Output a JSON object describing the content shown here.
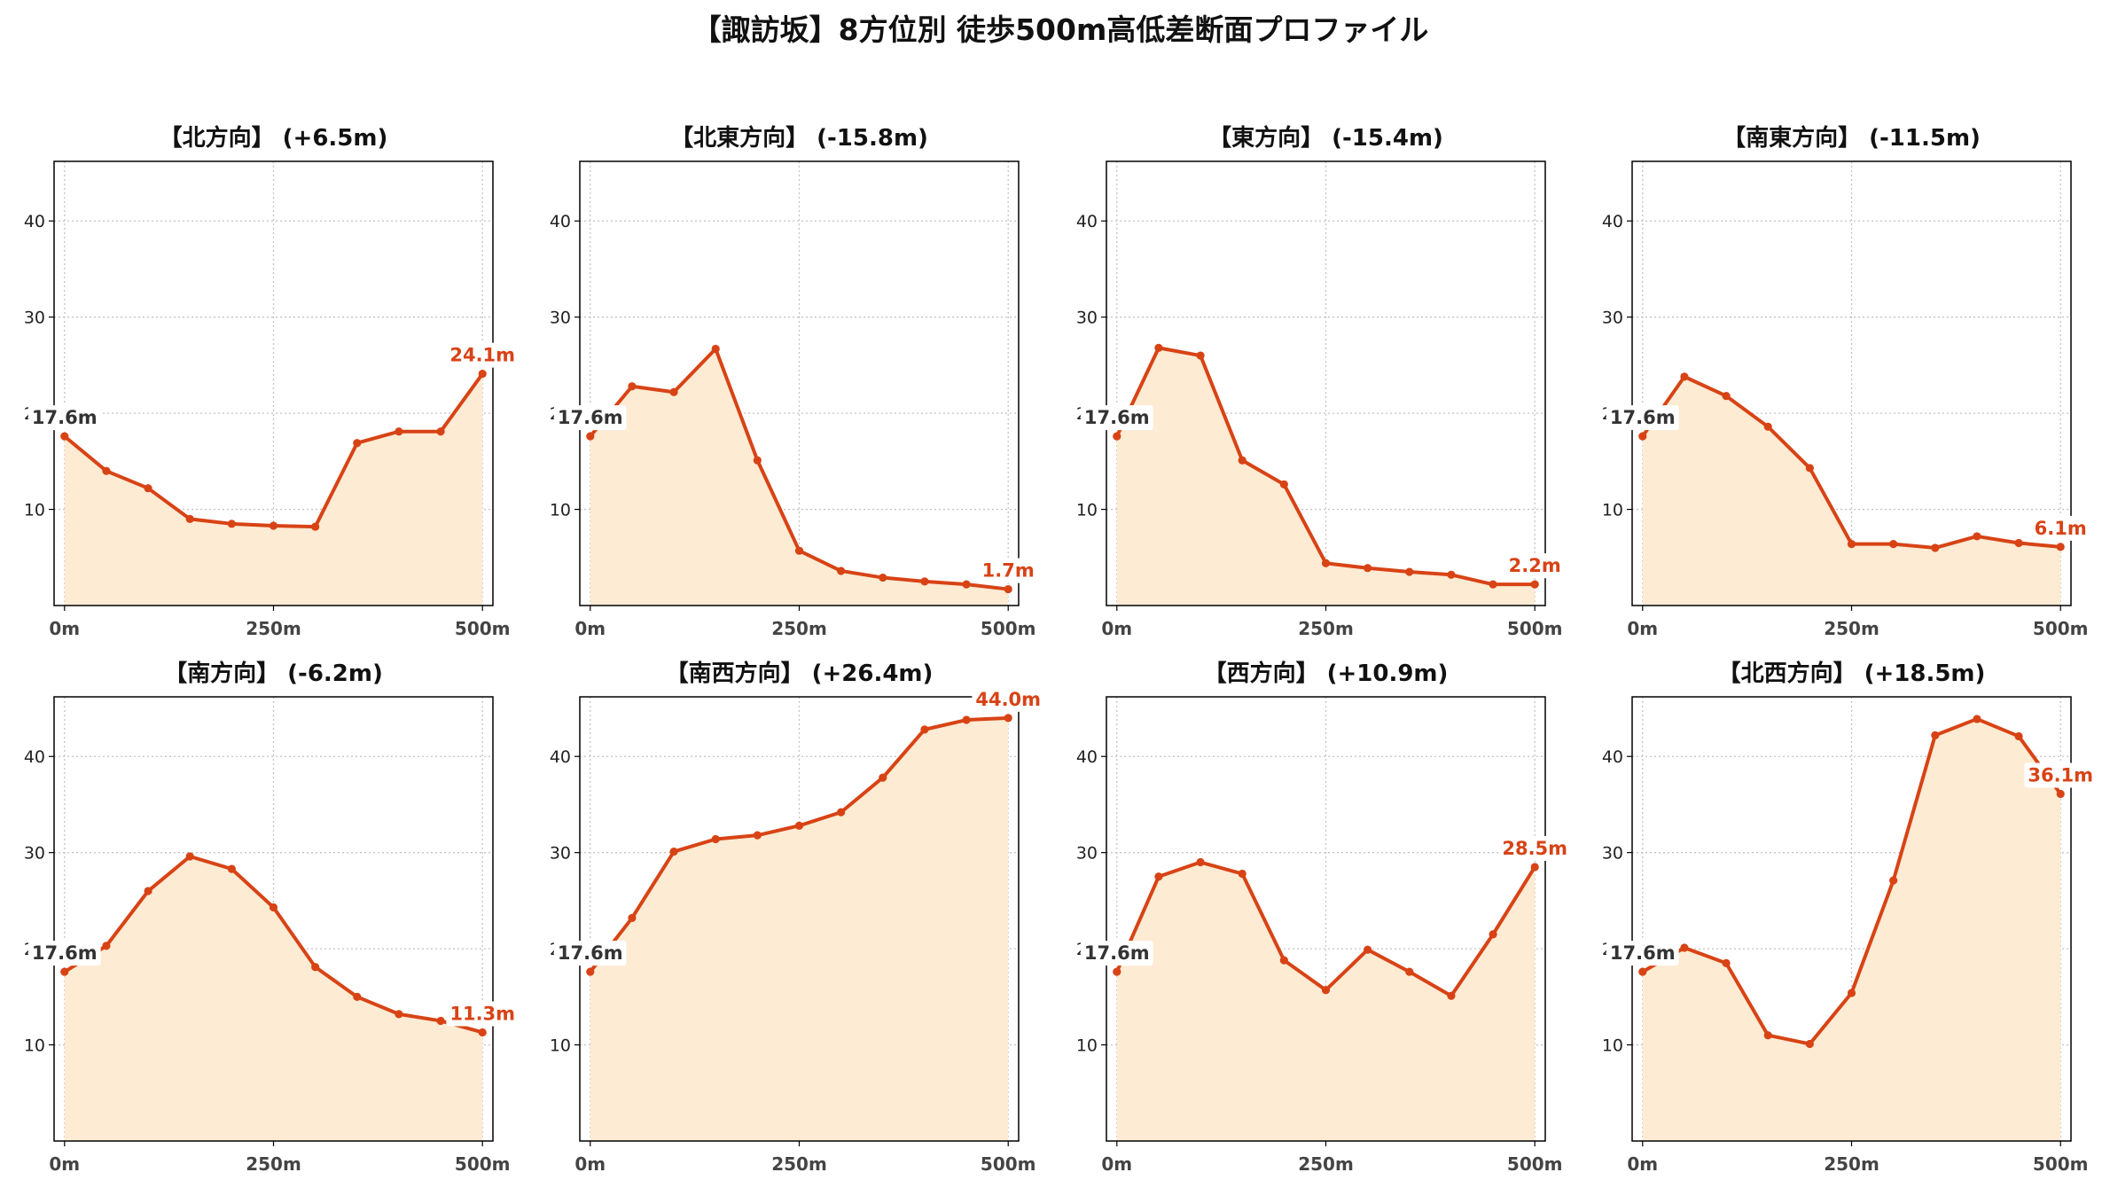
{
  "title": "【諏訪坂】8方位別 徒歩500m高低差断面プロファイル",
  "colors": {
    "line": "#d84315",
    "fill": "#fdebd3",
    "start_label": "#333333",
    "grid": "#c4c4c4",
    "frame": "#000000",
    "label_box": "#ffffff"
  },
  "chart_data": [
    {
      "type": "area",
      "title": "【北方向】 (+6.5m)",
      "x": [
        0,
        50,
        100,
        150,
        200,
        250,
        300,
        350,
        400,
        450,
        500
      ],
      "values": [
        17.6,
        14.0,
        12.2,
        9.0,
        8.5,
        8.3,
        8.2,
        16.9,
        18.1,
        18.1,
        24.1
      ],
      "xlim": [
        -12.5,
        512.5
      ],
      "ylim": [
        0,
        46.2
      ],
      "xticks": [
        0,
        250,
        500
      ],
      "xtick_labels": [
        "0m",
        "250m",
        "500m"
      ],
      "yticks": [
        10,
        20,
        30,
        40
      ],
      "ytick_labels": [
        "10",
        "20",
        "30",
        "40"
      ],
      "start_label": "17.6m",
      "end_label": "24.1m",
      "grid": true
    },
    {
      "type": "area",
      "title": "【北東方向】 (-15.8m)",
      "x": [
        0,
        50,
        100,
        150,
        200,
        250,
        300,
        350,
        400,
        450,
        500
      ],
      "values": [
        17.6,
        22.8,
        22.2,
        26.7,
        15.1,
        5.7,
        3.6,
        2.9,
        2.5,
        2.2,
        1.7
      ],
      "xlim": [
        -12.5,
        512.5
      ],
      "ylim": [
        0,
        46.2
      ],
      "xticks": [
        0,
        250,
        500
      ],
      "xtick_labels": [
        "0m",
        "250m",
        "500m"
      ],
      "yticks": [
        10,
        20,
        30,
        40
      ],
      "ytick_labels": [
        "10",
        "20",
        "30",
        "40"
      ],
      "start_label": "17.6m",
      "end_label": "1.7m",
      "grid": true
    },
    {
      "type": "area",
      "title": "【東方向】 (-15.4m)",
      "x": [
        0,
        50,
        100,
        150,
        200,
        250,
        300,
        350,
        400,
        450,
        500
      ],
      "values": [
        17.6,
        26.8,
        26.0,
        15.1,
        12.6,
        4.4,
        3.9,
        3.5,
        3.2,
        2.2,
        2.2
      ],
      "xlim": [
        -12.5,
        512.5
      ],
      "ylim": [
        0,
        46.2
      ],
      "xticks": [
        0,
        250,
        500
      ],
      "xtick_labels": [
        "0m",
        "250m",
        "500m"
      ],
      "yticks": [
        10,
        20,
        30,
        40
      ],
      "ytick_labels": [
        "10",
        "20",
        "30",
        "40"
      ],
      "start_label": "17.6m",
      "end_label": "2.2m",
      "grid": true
    },
    {
      "type": "area",
      "title": "【南東方向】 (-11.5m)",
      "x": [
        0,
        50,
        100,
        150,
        200,
        250,
        300,
        350,
        400,
        450,
        500
      ],
      "values": [
        17.6,
        23.8,
        21.8,
        18.6,
        14.3,
        6.4,
        6.4,
        6.0,
        7.2,
        6.5,
        6.1
      ],
      "xlim": [
        -12.5,
        512.5
      ],
      "ylim": [
        0,
        46.2
      ],
      "xticks": [
        0,
        250,
        500
      ],
      "xtick_labels": [
        "0m",
        "250m",
        "500m"
      ],
      "yticks": [
        10,
        20,
        30,
        40
      ],
      "ytick_labels": [
        "10",
        "20",
        "30",
        "40"
      ],
      "start_label": "17.6m",
      "end_label": "6.1m",
      "grid": true
    },
    {
      "type": "area",
      "title": "【南方向】 (-6.2m)",
      "x": [
        0,
        50,
        100,
        150,
        200,
        250,
        300,
        350,
        400,
        450,
        500
      ],
      "values": [
        17.6,
        20.3,
        26.0,
        29.6,
        28.3,
        24.3,
        18.1,
        15.0,
        13.2,
        12.5,
        11.3
      ],
      "xlim": [
        -12.5,
        512.5
      ],
      "ylim": [
        0,
        46.2
      ],
      "xticks": [
        0,
        250,
        500
      ],
      "xtick_labels": [
        "0m",
        "250m",
        "500m"
      ],
      "yticks": [
        10,
        20,
        30,
        40
      ],
      "ytick_labels": [
        "10",
        "20",
        "30",
        "40"
      ],
      "start_label": "17.6m",
      "end_label": "11.3m",
      "grid": true
    },
    {
      "type": "area",
      "title": "【南西方向】 (+26.4m)",
      "x": [
        0,
        50,
        100,
        150,
        200,
        250,
        300,
        350,
        400,
        450,
        500
      ],
      "values": [
        17.6,
        23.2,
        30.1,
        31.4,
        31.8,
        32.8,
        34.2,
        37.8,
        42.8,
        43.8,
        44.0
      ],
      "xlim": [
        -12.5,
        512.5
      ],
      "ylim": [
        0,
        46.2
      ],
      "xticks": [
        0,
        250,
        500
      ],
      "xtick_labels": [
        "0m",
        "250m",
        "500m"
      ],
      "yticks": [
        10,
        20,
        30,
        40
      ],
      "ytick_labels": [
        "10",
        "20",
        "30",
        "40"
      ],
      "start_label": "17.6m",
      "end_label": "44.0m",
      "grid": true
    },
    {
      "type": "area",
      "title": "【西方向】 (+10.9m)",
      "x": [
        0,
        50,
        100,
        150,
        200,
        250,
        300,
        350,
        400,
        450,
        500
      ],
      "values": [
        17.6,
        27.5,
        29.0,
        27.8,
        18.8,
        15.7,
        19.9,
        17.6,
        15.1,
        21.5,
        28.5
      ],
      "xlim": [
        -12.5,
        512.5
      ],
      "ylim": [
        0,
        46.2
      ],
      "xticks": [
        0,
        250,
        500
      ],
      "xtick_labels": [
        "0m",
        "250m",
        "500m"
      ],
      "yticks": [
        10,
        20,
        30,
        40
      ],
      "ytick_labels": [
        "10",
        "20",
        "30",
        "40"
      ],
      "start_label": "17.6m",
      "end_label": "28.5m",
      "grid": true
    },
    {
      "type": "area",
      "title": "【北西方向】 (+18.5m)",
      "x": [
        0,
        50,
        100,
        150,
        200,
        250,
        300,
        350,
        400,
        450,
        500
      ],
      "values": [
        17.6,
        20.1,
        18.5,
        11.0,
        10.1,
        15.4,
        27.1,
        42.2,
        43.9,
        42.1,
        36.1
      ],
      "xlim": [
        -12.5,
        512.5
      ],
      "ylim": [
        0,
        46.2
      ],
      "xticks": [
        0,
        250,
        500
      ],
      "xtick_labels": [
        "0m",
        "250m",
        "500m"
      ],
      "yticks": [
        10,
        20,
        30,
        40
      ],
      "ytick_labels": [
        "10",
        "20",
        "30",
        "40"
      ],
      "start_label": "17.6m",
      "end_label": "36.1m",
      "grid": true
    }
  ]
}
